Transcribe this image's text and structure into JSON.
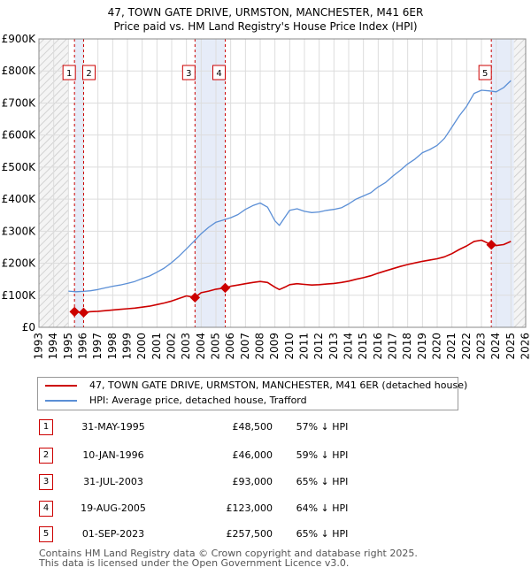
{
  "title_line1": "47, TOWN GATE DRIVE, URMSTON, MANCHESTER, M41 6ER",
  "title_line2": "Price paid vs. HM Land Registry's House Price Index (HPI)",
  "legend": [
    {
      "label": "47, TOWN GATE DRIVE, URMSTON, MANCHESTER, M41 6ER (detached house)",
      "color": "#cc0000"
    },
    {
      "label": "HPI: Average price, detached house, Trafford",
      "color": "#5b8fd6"
    }
  ],
  "transactions": [
    {
      "num": "1",
      "date": "31-MAY-1995",
      "price": "£48,500",
      "hpi": "57% ↓ HPI"
    },
    {
      "num": "2",
      "date": "10-JAN-1996",
      "price": "£46,000",
      "hpi": "59% ↓ HPI"
    },
    {
      "num": "3",
      "date": "31-JUL-2003",
      "price": "£93,000",
      "hpi": "65% ↓ HPI"
    },
    {
      "num": "4",
      "date": "19-AUG-2005",
      "price": "£123,000",
      "hpi": "64% ↓ HPI"
    },
    {
      "num": "5",
      "date": "01-SEP-2023",
      "price": "£257,500",
      "hpi": "65% ↓ HPI"
    }
  ],
  "footer_line1": "Contains HM Land Registry data © Crown copyright and database right 2025.",
  "footer_line2": "This data is licensed under the Open Government Licence v3.0.",
  "chart_data": {
    "type": "line",
    "title": "47, TOWN GATE DRIVE, URMSTON, MANCHESTER, M41 6ER",
    "subtitle": "Price paid vs. HM Land Registry's House Price Index (HPI)",
    "xlabel": "",
    "ylabel": "",
    "xlim": [
      1993,
      2026
    ],
    "ylim": [
      0,
      900000
    ],
    "x_ticks": [
      1993,
      1994,
      1995,
      1996,
      1997,
      1998,
      1999,
      2000,
      2001,
      2002,
      2003,
      2004,
      2005,
      2006,
      2007,
      2008,
      2009,
      2010,
      2011,
      2012,
      2013,
      2014,
      2015,
      2016,
      2017,
      2018,
      2019,
      2020,
      2021,
      2022,
      2023,
      2024,
      2025,
      2026
    ],
    "y_ticks": [
      0,
      100000,
      200000,
      300000,
      400000,
      500000,
      600000,
      700000,
      800000,
      900000
    ],
    "y_tick_labels": [
      "£0",
      "£100K",
      "£200K",
      "£300K",
      "£400K",
      "£500K",
      "£600K",
      "£700K",
      "£800K",
      "£900K"
    ],
    "grid": true,
    "hatched_ranges": [
      [
        1993,
        1995.0
      ],
      [
        2025.2,
        2026
      ]
    ],
    "shaded_ranges": [
      [
        1995.41,
        1996.03
      ],
      [
        2003.58,
        2005.63
      ],
      [
        2023.67,
        2025.2
      ]
    ],
    "series": [
      {
        "name": "HPI: Average price, detached house, Trafford",
        "color": "#5b8fd6",
        "x": [
          1995.0,
          1995.5,
          1996.0,
          1996.5,
          1997.0,
          1997.5,
          1998.0,
          1998.5,
          1999.0,
          1999.5,
          2000.0,
          2000.5,
          2001.0,
          2001.5,
          2002.0,
          2002.5,
          2003.0,
          2003.5,
          2004.0,
          2004.5,
          2005.0,
          2005.5,
          2006.0,
          2006.5,
          2007.0,
          2007.5,
          2008.0,
          2008.5,
          2009.0,
          2009.3,
          2009.7,
          2010.0,
          2010.5,
          2011.0,
          2011.5,
          2012.0,
          2012.5,
          2013.0,
          2013.5,
          2014.0,
          2014.5,
          2015.0,
          2015.5,
          2016.0,
          2016.5,
          2017.0,
          2017.5,
          2018.0,
          2018.5,
          2019.0,
          2019.5,
          2020.0,
          2020.5,
          2021.0,
          2021.5,
          2022.0,
          2022.5,
          2023.0,
          2023.5,
          2024.0,
          2024.5,
          2025.0
        ],
        "y": [
          113000,
          111000,
          112000,
          114000,
          118000,
          123000,
          128000,
          132000,
          137000,
          143000,
          152000,
          160000,
          172000,
          185000,
          202000,
          222000,
          245000,
          268000,
          292000,
          312000,
          328000,
          335000,
          342000,
          352000,
          368000,
          380000,
          388000,
          375000,
          332000,
          318000,
          345000,
          365000,
          370000,
          362000,
          358000,
          360000,
          365000,
          368000,
          373000,
          385000,
          400000,
          410000,
          420000,
          438000,
          452000,
          472000,
          490000,
          510000,
          525000,
          545000,
          555000,
          568000,
          590000,
          625000,
          660000,
          690000,
          730000,
          740000,
          738000,
          735000,
          748000,
          770000
        ]
      },
      {
        "name": "47, TOWN GATE DRIVE, URMSTON, MANCHESTER, M41 6ER (detached house)",
        "color": "#cc0000",
        "x": [
          1995.41,
          1996.03,
          1996.5,
          1997.0,
          1997.5,
          1998.0,
          1998.5,
          1999.0,
          1999.5,
          2000.0,
          2000.5,
          2001.0,
          2001.5,
          2002.0,
          2002.5,
          2003.0,
          2003.58,
          2004.0,
          2004.5,
          2005.0,
          2005.63,
          2006.0,
          2006.5,
          2007.0,
          2007.5,
          2008.0,
          2008.5,
          2009.0,
          2009.3,
          2009.7,
          2010.0,
          2010.5,
          2011.0,
          2011.5,
          2012.0,
          2012.5,
          2013.0,
          2013.5,
          2014.0,
          2014.5,
          2015.0,
          2015.5,
          2016.0,
          2016.5,
          2017.0,
          2017.5,
          2018.0,
          2018.5,
          2019.0,
          2019.5,
          2020.0,
          2020.5,
          2021.0,
          2021.5,
          2022.0,
          2022.5,
          2023.0,
          2023.67,
          2024.0,
          2024.5,
          2025.0
        ],
        "y": [
          48500,
          46000,
          49000,
          50000,
          52000,
          54000,
          56000,
          58000,
          60000,
          63000,
          66000,
          71000,
          76000,
          82000,
          90000,
          98000,
          93000,
          108000,
          113000,
          119000,
          123000,
          128000,
          132000,
          136000,
          140000,
          143000,
          140000,
          125000,
          118000,
          126000,
          133000,
          136000,
          134000,
          132000,
          133000,
          135000,
          137000,
          140000,
          144000,
          150000,
          155000,
          161000,
          169000,
          176000,
          183000,
          190000,
          196000,
          201000,
          206000,
          210000,
          214000,
          220000,
          230000,
          243000,
          254000,
          268000,
          272000,
          257500,
          255000,
          258000,
          268000
        ]
      }
    ],
    "sale_markers": [
      {
        "label": "1",
        "x": 1995.41,
        "y": 48500
      },
      {
        "label": "2",
        "x": 1996.03,
        "y": 46000
      },
      {
        "label": "3",
        "x": 2003.58,
        "y": 93000
      },
      {
        "label": "4",
        "x": 2005.63,
        "y": 123000
      },
      {
        "label": "5",
        "x": 2023.67,
        "y": 257500
      }
    ],
    "legend_position": "below"
  }
}
